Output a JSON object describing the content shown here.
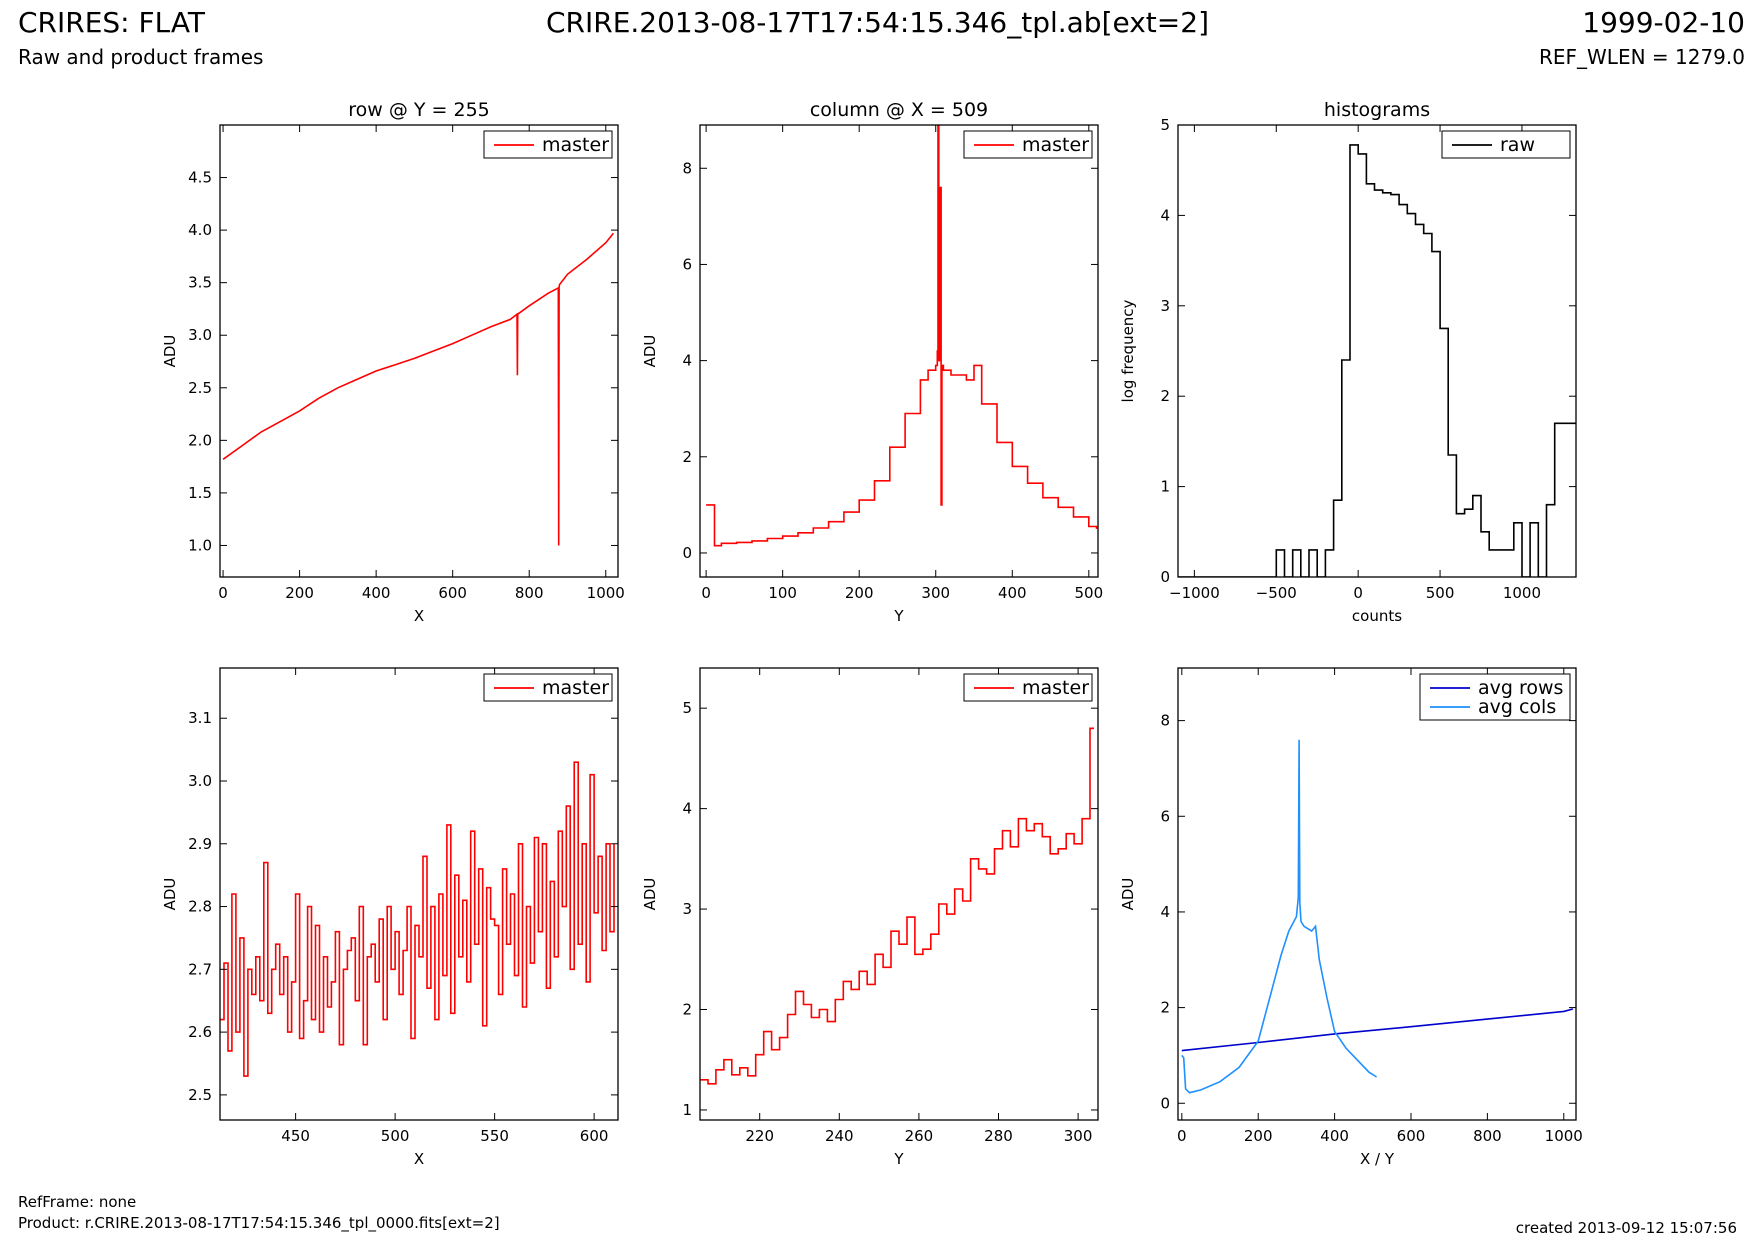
{
  "header": {
    "title_left": "CRIRES: FLAT",
    "subtitle_left": "Raw and product frames",
    "title_center": "CRIRE.2013-08-17T17:54:15.346_tpl.ab[ext=2]",
    "title_right": "1999-02-10",
    "subtitle_right": "REF_WLEN = 1279.0"
  },
  "footer": {
    "ref_frame": "RefFrame: none",
    "product": "Product: r.CRIRE.2013-08-17T17:54:15.346_tpl_0000.fits[ext=2]",
    "created": "created 2013-09-12 15:07:56"
  },
  "chart_data": [
    {
      "type": "line",
      "title": "row @ Y = 255",
      "xlabel": "X",
      "ylabel": "ADU",
      "xlim": [
        -8,
        1032
      ],
      "ylim": [
        0.7,
        5.0
      ],
      "xticks": [
        0,
        200,
        400,
        600,
        800,
        1000
      ],
      "yticks": [
        1.0,
        1.5,
        2.0,
        2.5,
        3.0,
        3.5,
        4.0,
        4.5
      ],
      "ytick_labels": [
        "1.0",
        "1.5",
        "2.0",
        "2.5",
        "3.0",
        "3.5",
        "4.0",
        "4.5"
      ],
      "legend": "top-right",
      "series": [
        {
          "name": "master",
          "color": "#ff0000",
          "step": false,
          "x": [
            0,
            50,
            100,
            150,
            200,
            250,
            300,
            350,
            400,
            450,
            500,
            550,
            600,
            650,
            700,
            750,
            768,
            769,
            770,
            800,
            850,
            876,
            877,
            878,
            879,
            900,
            950,
            1000,
            1020
          ],
          "y": [
            1.82,
            1.95,
            2.08,
            2.18,
            2.28,
            2.4,
            2.5,
            2.58,
            2.66,
            2.72,
            2.78,
            2.85,
            2.92,
            3.0,
            3.08,
            3.15,
            3.2,
            2.62,
            3.2,
            3.28,
            3.4,
            3.45,
            1.0,
            3.45,
            3.48,
            3.58,
            3.72,
            3.88,
            3.97
          ]
        }
      ]
    },
    {
      "type": "line",
      "title": "column @ X = 509",
      "xlabel": "Y",
      "ylabel": "ADU",
      "xlim": [
        -8,
        512
      ],
      "ylim": [
        -0.5,
        8.9
      ],
      "xticks": [
        0,
        100,
        200,
        300,
        400,
        500
      ],
      "yticks": [
        0,
        2,
        4,
        6,
        8
      ],
      "ytick_labels": [
        "0",
        "2",
        "4",
        "6",
        "8"
      ],
      "legend": "top-right",
      "series": [
        {
          "name": "master",
          "color": "#ff0000",
          "step": true,
          "x": [
            0,
            5,
            10,
            11,
            20,
            40,
            60,
            80,
            100,
            120,
            140,
            160,
            180,
            200,
            220,
            240,
            260,
            280,
            290,
            300,
            302,
            303,
            304,
            306,
            307,
            308,
            310,
            320,
            340,
            350,
            360,
            380,
            400,
            420,
            440,
            460,
            480,
            500,
            510
          ],
          "y": [
            1.0,
            1.0,
            1.0,
            0.15,
            0.2,
            0.22,
            0.25,
            0.3,
            0.35,
            0.42,
            0.52,
            0.65,
            0.85,
            1.1,
            1.5,
            2.2,
            2.9,
            3.6,
            3.8,
            3.9,
            4.2,
            8.9,
            4.0,
            7.6,
            1.0,
            3.9,
            3.8,
            3.7,
            3.6,
            3.9,
            3.1,
            2.3,
            1.8,
            1.45,
            1.15,
            0.95,
            0.75,
            0.55,
            0.5
          ]
        }
      ]
    },
    {
      "type": "line",
      "title": "histograms",
      "xlabel": "counts",
      "ylabel": "log frequency",
      "xlim": [
        -1100,
        1330
      ],
      "ylim": [
        0,
        5
      ],
      "xticks": [
        -1000,
        -500,
        0,
        500,
        1000
      ],
      "xtick_labels": [
        "−1000",
        "−500",
        "0",
        "500",
        "1000"
      ],
      "yticks": [
        0,
        1,
        2,
        3,
        4,
        5
      ],
      "ytick_labels": [
        "0",
        "1",
        "2",
        "3",
        "4",
        "5"
      ],
      "legend": "top-right",
      "series": [
        {
          "name": "raw",
          "color": "#000000",
          "step": true,
          "x": [
            -1100,
            -500,
            -450,
            -400,
            -350,
            -300,
            -250,
            -200,
            -150,
            -100,
            -50,
            0,
            50,
            100,
            150,
            200,
            250,
            300,
            350,
            400,
            450,
            500,
            550,
            600,
            650,
            700,
            750,
            800,
            850,
            900,
            950,
            1000,
            1050,
            1100,
            1150,
            1200,
            1250,
            1300,
            1330
          ],
          "y": [
            0,
            0.3,
            0,
            0.3,
            0,
            0.3,
            0,
            0.3,
            0.85,
            2.4,
            4.78,
            4.68,
            4.35,
            4.28,
            4.25,
            4.23,
            4.12,
            4.02,
            3.9,
            3.8,
            3.6,
            2.75,
            1.35,
            0.7,
            0.75,
            0.9,
            0.5,
            0.3,
            0.3,
            0.3,
            0.6,
            0,
            0.6,
            0,
            0.8,
            1.7,
            1.7,
            1.7,
            1.7
          ]
        }
      ]
    },
    {
      "type": "line",
      "title": "",
      "xlabel": "X",
      "ylabel": "ADU",
      "xlim": [
        412,
        612
      ],
      "ylim": [
        2.46,
        3.18
      ],
      "xticks": [
        450,
        500,
        550,
        600
      ],
      "yticks": [
        2.5,
        2.6,
        2.7,
        2.8,
        2.9,
        3.0,
        3.1
      ],
      "ytick_labels": [
        "2.5",
        "2.6",
        "2.7",
        "2.8",
        "2.9",
        "3.0",
        "3.1"
      ],
      "legend": "top-right",
      "series": [
        {
          "name": "master",
          "color": "#ff0000",
          "step": true,
          "x": [
            412,
            414,
            416,
            418,
            420,
            422,
            424,
            426,
            428,
            430,
            432,
            434,
            436,
            438,
            440,
            442,
            444,
            446,
            448,
            450,
            452,
            454,
            456,
            458,
            460,
            462,
            464,
            466,
            468,
            470,
            472,
            474,
            476,
            478,
            480,
            482,
            484,
            486,
            488,
            490,
            492,
            494,
            496,
            498,
            500,
            502,
            504,
            506,
            508,
            510,
            512,
            514,
            516,
            518,
            520,
            522,
            524,
            526,
            528,
            530,
            532,
            534,
            536,
            538,
            540,
            542,
            544,
            546,
            548,
            550,
            552,
            554,
            556,
            558,
            560,
            562,
            564,
            566,
            568,
            570,
            572,
            574,
            576,
            578,
            580,
            582,
            584,
            586,
            588,
            590,
            592,
            594,
            596,
            598,
            600,
            602,
            604,
            606,
            608,
            610
          ],
          "y": [
            2.62,
            2.71,
            2.57,
            2.82,
            2.6,
            2.75,
            2.53,
            2.7,
            2.66,
            2.72,
            2.65,
            2.87,
            2.63,
            2.7,
            2.74,
            2.66,
            2.72,
            2.6,
            2.68,
            2.82,
            2.59,
            2.65,
            2.8,
            2.62,
            2.77,
            2.6,
            2.72,
            2.64,
            2.68,
            2.76,
            2.58,
            2.7,
            2.73,
            2.75,
            2.65,
            2.8,
            2.58,
            2.72,
            2.74,
            2.68,
            2.78,
            2.62,
            2.8,
            2.7,
            2.76,
            2.66,
            2.73,
            2.8,
            2.59,
            2.77,
            2.72,
            2.88,
            2.67,
            2.8,
            2.62,
            2.82,
            2.69,
            2.93,
            2.63,
            2.85,
            2.72,
            2.81,
            2.68,
            2.92,
            2.74,
            2.86,
            2.61,
            2.83,
            2.78,
            2.77,
            2.66,
            2.86,
            2.74,
            2.82,
            2.69,
            2.9,
            2.64,
            2.8,
            2.71,
            2.91,
            2.76,
            2.9,
            2.67,
            2.84,
            2.72,
            2.92,
            2.8,
            2.96,
            2.7,
            3.03,
            2.74,
            2.9,
            2.68,
            3.01,
            2.79,
            2.88,
            2.73,
            2.9,
            2.76,
            2.9
          ]
        }
      ]
    },
    {
      "type": "line",
      "title": "",
      "xlabel": "Y",
      "ylabel": "ADU",
      "xlim": [
        205,
        305
      ],
      "ylim": [
        0.9,
        5.4
      ],
      "xticks": [
        220,
        240,
        260,
        280,
        300
      ],
      "yticks": [
        1,
        2,
        3,
        4,
        5
      ],
      "ytick_labels": [
        "1",
        "2",
        "3",
        "4",
        "5"
      ],
      "legend": "top-right",
      "series": [
        {
          "name": "master",
          "color": "#ff0000",
          "step": true,
          "x": [
            205,
            207,
            209,
            211,
            213,
            215,
            217,
            219,
            221,
            223,
            225,
            227,
            229,
            231,
            233,
            235,
            237,
            239,
            241,
            243,
            245,
            247,
            249,
            251,
            253,
            255,
            257,
            259,
            261,
            263,
            265,
            267,
            269,
            271,
            273,
            275,
            277,
            279,
            281,
            283,
            285,
            287,
            289,
            291,
            293,
            295,
            297,
            299,
            301,
            303,
            304
          ],
          "y": [
            1.3,
            1.26,
            1.4,
            1.5,
            1.35,
            1.42,
            1.34,
            1.55,
            1.78,
            1.6,
            1.72,
            1.95,
            2.18,
            2.05,
            1.92,
            2.0,
            1.88,
            2.1,
            2.28,
            2.2,
            2.38,
            2.25,
            2.55,
            2.42,
            2.78,
            2.65,
            2.92,
            2.55,
            2.6,
            2.75,
            3.05,
            2.95,
            3.2,
            3.08,
            3.5,
            3.4,
            3.35,
            3.6,
            3.78,
            3.62,
            3.9,
            3.78,
            3.85,
            3.72,
            3.55,
            3.6,
            3.75,
            3.65,
            3.9,
            4.8,
            4.8
          ]
        }
      ]
    },
    {
      "type": "line",
      "title": "",
      "xlabel": "X / Y",
      "ylabel": "ADU",
      "xlim": [
        -10,
        1032
      ],
      "ylim": [
        -0.35,
        9.1
      ],
      "xticks": [
        0,
        200,
        400,
        600,
        800,
        1000
      ],
      "yticks": [
        0,
        2,
        4,
        6,
        8
      ],
      "ytick_labels": [
        "0",
        "2",
        "4",
        "6",
        "8"
      ],
      "legend": "top-right",
      "series": [
        {
          "name": "avg rows",
          "color": "#0000cc",
          "step": false,
          "x": [
            0,
            200,
            400,
            600,
            800,
            1000,
            1024
          ],
          "y": [
            1.1,
            1.27,
            1.45,
            1.6,
            1.76,
            1.92,
            1.97
          ]
        },
        {
          "name": "avg cols",
          "color": "#1e90ff",
          "step": false,
          "x": [
            0,
            5,
            10,
            20,
            50,
            100,
            150,
            200,
            230,
            260,
            280,
            300,
            305,
            307,
            309,
            312,
            320,
            340,
            350,
            360,
            380,
            400,
            430,
            460,
            490,
            510
          ],
          "y": [
            1.0,
            0.95,
            0.3,
            0.22,
            0.28,
            0.45,
            0.75,
            1.3,
            2.2,
            3.1,
            3.6,
            3.9,
            4.3,
            7.6,
            4.2,
            3.8,
            3.7,
            3.6,
            3.7,
            3.0,
            2.2,
            1.5,
            1.15,
            0.9,
            0.65,
            0.55
          ]
        }
      ]
    }
  ]
}
